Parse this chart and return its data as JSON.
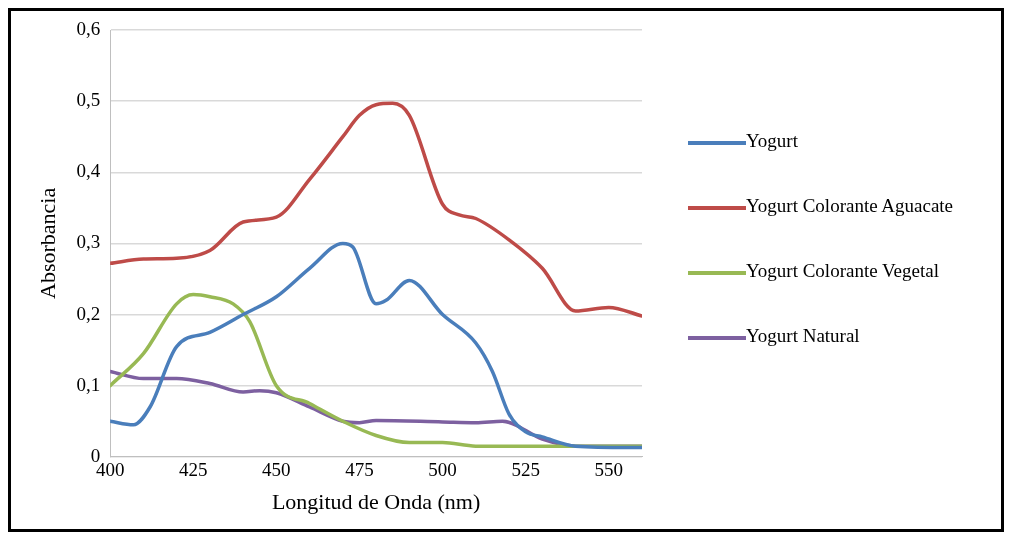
{
  "chart_data": {
    "type": "line",
    "xlabel": "Longitud de Onda (nm)",
    "ylabel": "Absorbancia",
    "xlim": [
      400,
      560
    ],
    "xticks": [
      400,
      425,
      450,
      475,
      500,
      525,
      550
    ],
    "ylim": [
      0,
      0.6
    ],
    "yticks": [
      0,
      {
        "value": 0.1,
        "label": "0,1"
      },
      {
        "value": 0.2,
        "label": "0,2"
      },
      {
        "value": 0.3,
        "label": "0,3"
      },
      {
        "value": 0.4,
        "label": "0,4"
      },
      {
        "value": 0.5,
        "label": "0,5"
      },
      {
        "value": 0.6,
        "label": "0,6"
      }
    ],
    "grid": "y",
    "legend": "right",
    "marker": "none",
    "line_style": "solid",
    "series": [
      {
        "name": "Yogurt",
        "color": "#4a7ebb",
        "x": [
          400,
          407,
          412,
          420,
          430,
          440,
          450,
          460,
          470,
          473,
          480,
          483,
          490,
          500,
          510,
          515,
          520,
          525,
          530,
          540,
          560
        ],
        "values": [
          0.05,
          0.045,
          0.07,
          0.155,
          0.175,
          0.2,
          0.225,
          0.265,
          0.3,
          0.295,
          0.215,
          0.22,
          0.248,
          0.2,
          0.16,
          0.12,
          0.06,
          0.035,
          0.028,
          0.015,
          0.013
        ]
      },
      {
        "name": "Yogurt Colorante Aguacate",
        "color": "#be4b48",
        "x": [
          400,
          410,
          420,
          430,
          440,
          450,
          460,
          470,
          475,
          480,
          485,
          490,
          500,
          505,
          510,
          520,
          530,
          540,
          550,
          560
        ],
        "values": [
          0.272,
          0.278,
          0.279,
          0.29,
          0.33,
          0.337,
          0.39,
          0.45,
          0.48,
          0.495,
          0.497,
          0.48,
          0.355,
          0.34,
          0.335,
          0.305,
          0.265,
          0.205,
          0.21,
          0.198
        ]
      },
      {
        "name": "Yogurt Colorante Vegetal",
        "color": "#98b954",
        "x": [
          400,
          410,
          420,
          425,
          430,
          437,
          442,
          450,
          460,
          470,
          480,
          490,
          500,
          510,
          530,
          560
        ],
        "values": [
          0.1,
          0.145,
          0.215,
          0.228,
          0.225,
          0.215,
          0.19,
          0.1,
          0.075,
          0.05,
          0.03,
          0.02,
          0.02,
          0.015,
          0.015,
          0.015
        ]
      },
      {
        "name": "Yogurt Natural",
        "color": "#7d60a0",
        "x": [
          400,
          410,
          420,
          430,
          440,
          445,
          450,
          460,
          470,
          475,
          480,
          500,
          510,
          518,
          530,
          540,
          560
        ],
        "values": [
          0.12,
          0.11,
          0.11,
          0.103,
          0.091,
          0.093,
          0.09,
          0.07,
          0.05,
          0.048,
          0.051,
          0.049,
          0.048,
          0.05,
          0.025,
          0.015,
          0.015
        ]
      }
    ]
  }
}
